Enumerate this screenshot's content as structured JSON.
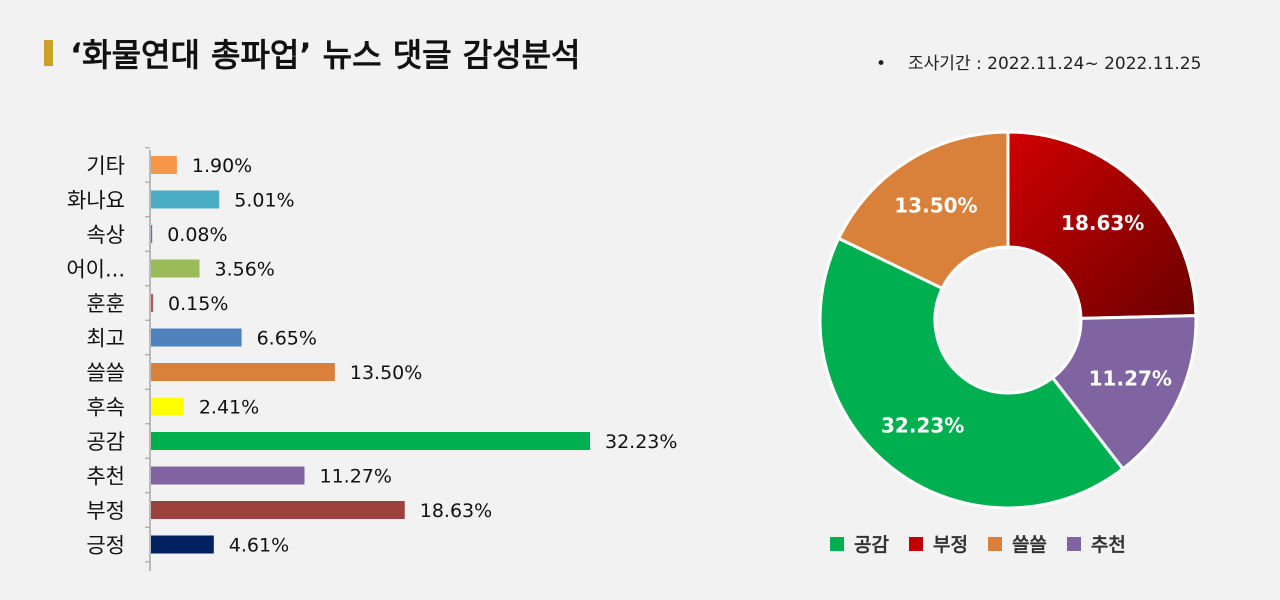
{
  "header": {
    "title": "‘화물연대 총파업’ 뉴스 댓글 감성분석",
    "period_bullet": "•",
    "period": "조사기간 : 2022.11.24~ 2022.11.25"
  },
  "chart_data": [
    {
      "type": "bar",
      "orientation": "horizontal",
      "categories": [
        "기타",
        "화나요",
        "속상",
        "어이...",
        "훈훈",
        "최고",
        "쓸쓸",
        "후속",
        "공감",
        "추천",
        "부정",
        "긍정"
      ],
      "values": [
        1.9,
        5.01,
        0.08,
        3.56,
        0.15,
        6.65,
        13.5,
        2.41,
        32.23,
        11.27,
        18.63,
        4.61
      ],
      "data_labels": [
        "1.90%",
        "5.01%",
        "0.08%",
        "3.56%",
        "0.15%",
        "6.65%",
        "13.50%",
        "2.41%",
        "32.23%",
        "11.27%",
        "18.63%",
        "4.61%"
      ],
      "colors": [
        "#f79646",
        "#4bacc6",
        "#8064a2",
        "#9bbb59",
        "#c0504d",
        "#4f81bd",
        "#d9813a",
        "#ffff00",
        "#00b050",
        "#8064a2",
        "#9e413e",
        "#002060"
      ],
      "xlim": [
        0,
        32.23
      ],
      "grid": false
    },
    {
      "type": "pie",
      "donut": true,
      "categories": [
        "부정",
        "추천",
        "공감",
        "쓸쓸"
      ],
      "values": [
        18.63,
        11.27,
        32.23,
        13.5
      ],
      "data_labels": [
        "18.63%",
        "11.27%",
        "32.23%",
        "13.50%"
      ],
      "colors": [
        "#c00000",
        "#8064a2",
        "#00b050",
        "#d9813a"
      ],
      "legend": {
        "placement": "bottom",
        "entries": [
          {
            "label": "공감",
            "color": "#00b050"
          },
          {
            "label": "부정",
            "color": "#c00000"
          },
          {
            "label": "쓸쓸",
            "color": "#d9813a"
          },
          {
            "label": "추천",
            "color": "#8064a2"
          }
        ]
      }
    }
  ]
}
